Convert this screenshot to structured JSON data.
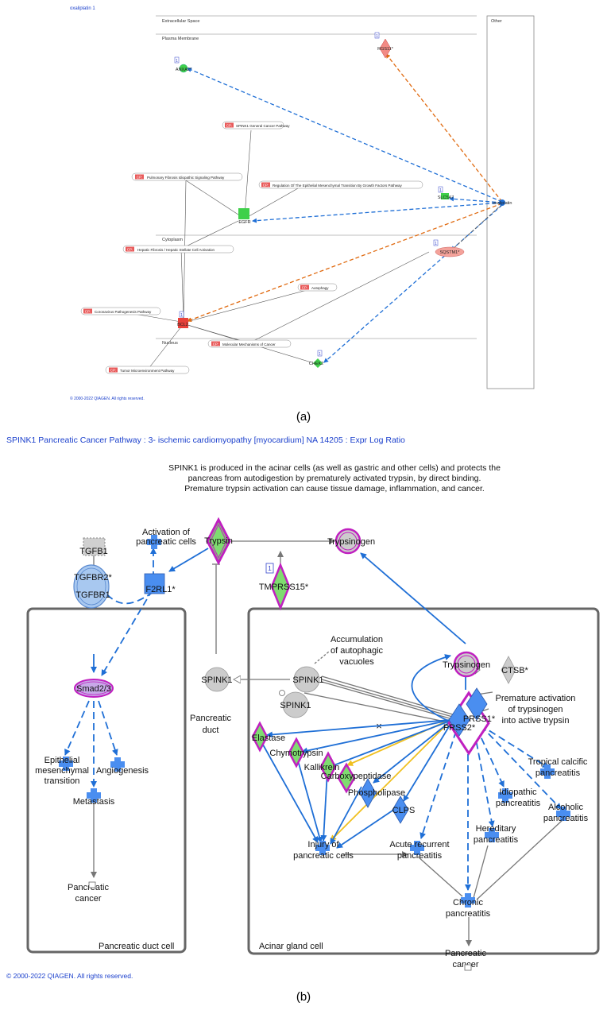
{
  "panel_a": {
    "title": "oxaliplatin 1",
    "compartments": {
      "extracellular": "Extracellular Space",
      "plasma_membrane": "Plasma Membrane",
      "cytoplasm": "Cytoplasm",
      "nucleus": "Nucleus",
      "other": "Other"
    },
    "genes": {
      "rgs11": "RGS11*",
      "anxa2": "ANXA2*",
      "egfr": "EGFR",
      "slc5a7": "SLC5A7",
      "sqstm1": "SQSTM1*",
      "bcl2": "BCL2",
      "chek2": "CHEK2",
      "oxaliplatin": "oxaliplatin"
    },
    "cp_tag": "CP:",
    "pathways": {
      "p1": "SPINK1 General Cancer Pathway",
      "p2": "Pulmonary Fibrosis Idiopathic Signaling Pathway",
      "p3": "Regulation Of The Epithelial Mesenchymal Transition By Growth Factors Pathway",
      "p4": "Hepatic Fibrosis / Hepatic Stellate Cell Activation",
      "p5": "Autophagy",
      "p6": "Coronavirus Pathogenesis Pathway",
      "p7": "Molecular Mechanisms of Cancer",
      "p8": "Tumor Microenvironment Pathway"
    },
    "badge": "1",
    "copyright": "© 2000-2022 QIAGEN. All rights reserved.",
    "label": "(a)"
  },
  "panel_b": {
    "title": "SPINK1 Pancreatic Cancer Pathway : 3- ischemic cardiomyopathy [myocardium] NA 14205 : Expr Log Ratio",
    "description": {
      "line1": "SPINK1 is produced in the acinar cells (as well as gastric and other cells) and protects the",
      "line2": "pancreas from autodigestion by prematurely activated trypsin, by direct binding.",
      "line3": "Premature trypsin activation can cause tissue damage, inflammation, and cancer."
    },
    "nodes": {
      "tgfb1": "TGFB1",
      "activation1": "Activation of",
      "activation2": "pancreatic cells",
      "trypsin": "Trypsin",
      "trypsinogen_top": "Trypsinogen",
      "tmprss15": "TMPRSS15*",
      "tgfbr2": "TGFBR2*",
      "tgfbr1": "TGFBR1",
      "f2rl1": "F2RL1*",
      "smad23": "Smad2/3",
      "spink1_duct": "SPINK1",
      "pancreatic_duct1": "Pancreatic",
      "pancreatic_duct2": "duct",
      "accum1": "Accumulation",
      "accum2": "of autophagic",
      "accum3": "vacuoles",
      "spink1_a": "SPINK1",
      "spink1_b": "SPINK1",
      "trypsinogen_acinar": "Trypsinogen",
      "ctsb": "CTSB*",
      "premature1": "Premature activation",
      "premature2": "of trypsinogen",
      "premature3": "into active trypsin",
      "prss1": "PRSS1*",
      "prss2": "PRSS2*",
      "elastase": "Elastase",
      "chymotrypsin": "Chymotrypsin",
      "kallikrein": "Kallikrein",
      "carboxypeptidase": "Carboxypeptidase",
      "phospholipase": "Phospholipase",
      "clps": "CLPS",
      "emt1": "Epithelial",
      "emt2": "mesenchymal",
      "emt3": "transition",
      "angiogenesis": "Angiogenesis",
      "metastasis": "Metastasis",
      "pcancer_duct1": "Pancreatic",
      "pcancer_duct2": "cancer",
      "tropical1": "Tropical calcific",
      "tropical2": "pancreatitis",
      "idiopathic1": "Idiopathic",
      "idiopathic2": "pancreatitis",
      "alcoholic1": "Alcoholic",
      "alcoholic2": "pancreatitis",
      "hereditary1": "Hereditary",
      "hereditary2": "pancreatitis",
      "injury1": "Injury of",
      "injury2": "pancreatic cells",
      "acute1": "Acute recurrent",
      "acute2": "pancreatitis",
      "chronic1": "Chronic",
      "chronic2": "pancreatitis",
      "pcancer_acinar1": "Pancreatic",
      "pcancer_acinar2": "cancer"
    },
    "cells": {
      "duct_cell": "Pancreatic duct cell",
      "acinar_cell": "Acinar gland cell"
    },
    "badge": "1",
    "copyright": "© 2000-2022 QIAGEN. All rights reserved.",
    "label": "(b)"
  }
}
